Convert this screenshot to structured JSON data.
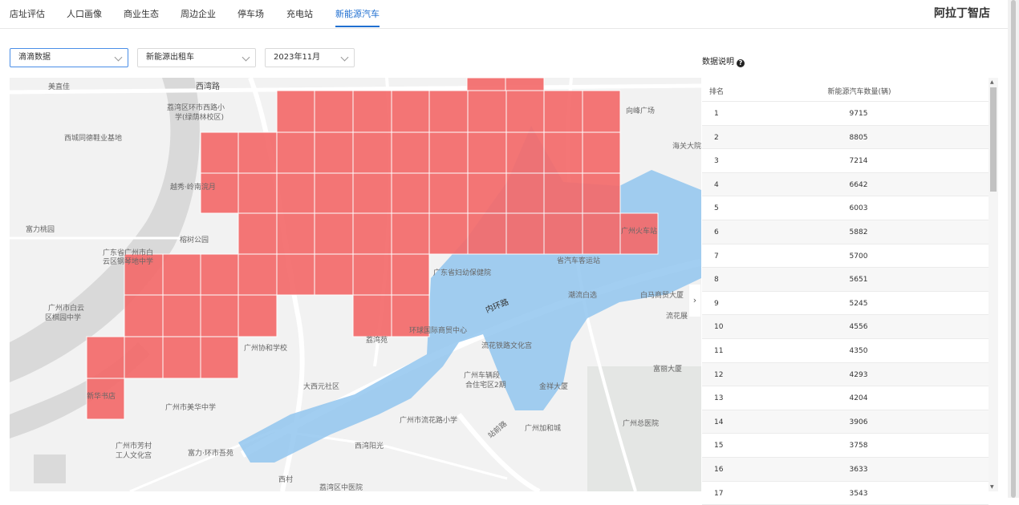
{
  "nav": {
    "tabs": [
      {
        "label": "店址评估"
      },
      {
        "label": "人口画像"
      },
      {
        "label": "商业生态"
      },
      {
        "label": "周边企业"
      },
      {
        "label": "停车场"
      },
      {
        "label": "充电站"
      },
      {
        "label": "新能源汽车"
      }
    ],
    "active_tab": "新能源汽车",
    "brand": "阿拉丁智店"
  },
  "filters": {
    "source": "滴滴数据",
    "vehicle_type": "新能源出租车",
    "month": "2023年11月"
  },
  "data_note": {
    "label": "数据说明",
    "icon": "help-circle-icon"
  },
  "map": {
    "labels": [
      "美直佳",
      "西湾路",
      "荔湾区环市西路小",
      "学(绿荫林校区)",
      "西城同德鞋业基地",
      "越秀·岭南浣月",
      "富力桃园",
      "榕树公园",
      "广东省广州市白",
      "云区钢琴地中学",
      "广州市白云",
      "区棋园中学",
      "广州协和学校",
      "广州市美华中学",
      "广州市芳村",
      "工人文化宫",
      "富力·环市吾苑",
      "西村",
      "荔湾区中医院",
      "新华书店",
      "西湾阳光",
      "广州市流花路小学",
      "广州车辆段",
      "合住宅区2期",
      "广州加和城",
      "广州总医院",
      "金祥大厦",
      "富丽大厦",
      "流花铁路文化宫",
      "环球国际商贸中心",
      "广东省妇幼保健院",
      "内环路",
      "潮流白选",
      "白马商贸大厦",
      "省汽车客运站",
      "向峰广场",
      "海关大院",
      "大西元社区",
      "广州火车站",
      "站前路",
      "流花展",
      "荔湾苑"
    ],
    "colors": {
      "grid_fill": "#f46b6b",
      "zone_fill": "#92c5ef",
      "base": "#f2f2f2",
      "road": "#ffffff",
      "green": "#e3e6e3"
    }
  },
  "table": {
    "headers": [
      "排名",
      "新能源汽车数量(辆)"
    ],
    "rows": [
      {
        "rank": "1",
        "value": "9715"
      },
      {
        "rank": "2",
        "value": "8805"
      },
      {
        "rank": "3",
        "value": "7214"
      },
      {
        "rank": "4",
        "value": "6642"
      },
      {
        "rank": "5",
        "value": "6003"
      },
      {
        "rank": "6",
        "value": "5882"
      },
      {
        "rank": "7",
        "value": "5700"
      },
      {
        "rank": "8",
        "value": "5651"
      },
      {
        "rank": "9",
        "value": "5245"
      },
      {
        "rank": "10",
        "value": "4556"
      },
      {
        "rank": "11",
        "value": "4350"
      },
      {
        "rank": "12",
        "value": "4293"
      },
      {
        "rank": "13",
        "value": "4204"
      },
      {
        "rank": "14",
        "value": "3906"
      },
      {
        "rank": "15",
        "value": "3758"
      },
      {
        "rank": "16",
        "value": "3633"
      },
      {
        "rank": "17",
        "value": "3543"
      }
    ]
  }
}
